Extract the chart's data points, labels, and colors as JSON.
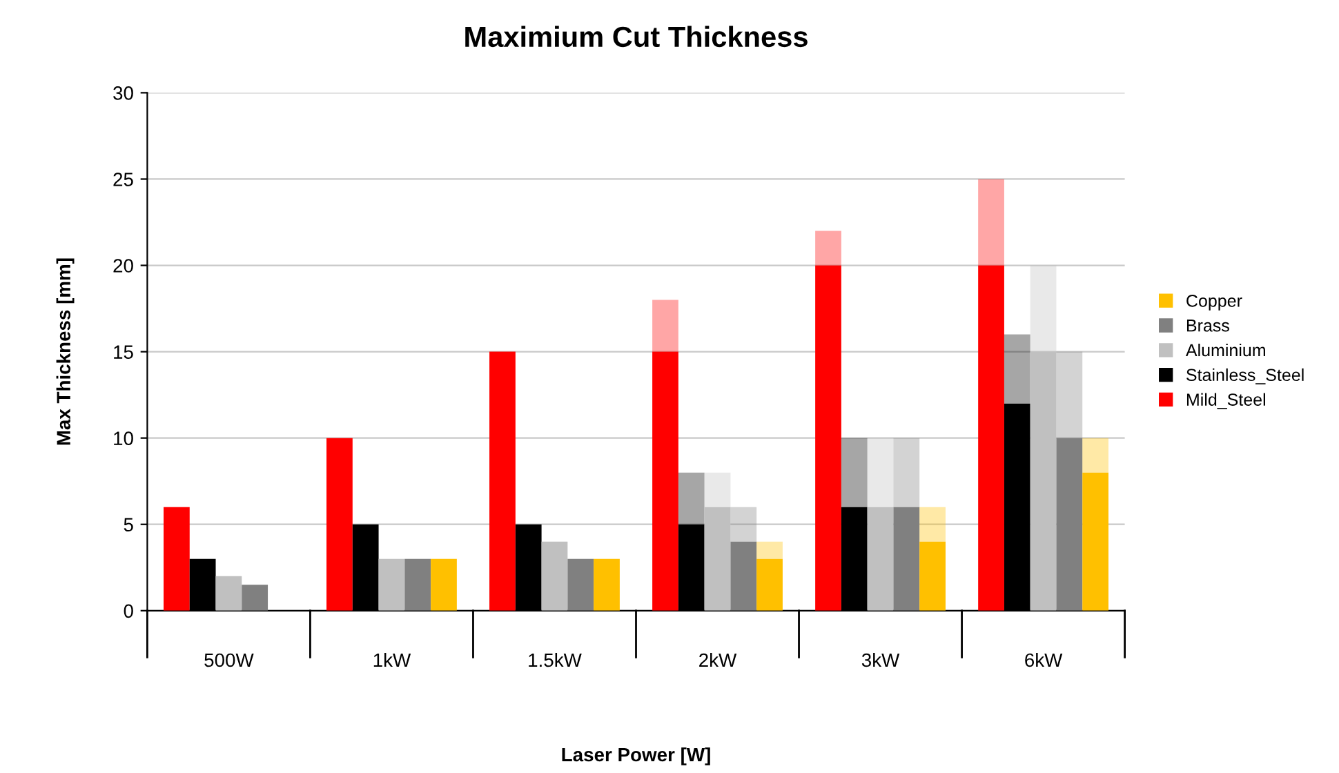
{
  "chart_data": {
    "type": "bar",
    "title": "Maximium Cut Thickness",
    "xlabel": "Laser Power [W]",
    "ylabel": "Max Thickness [mm]",
    "categories": [
      "500W",
      "1kW",
      "1.5kW",
      "2kW",
      "3kW",
      "6kW"
    ],
    "series": [
      {
        "name": "Mild_Steel",
        "color": "#ff0000",
        "values": [
          6,
          10,
          15,
          15,
          20,
          20
        ],
        "errors": [
          null,
          null,
          null,
          [
            15,
            18
          ],
          [
            20,
            22
          ],
          [
            20,
            25
          ]
        ]
      },
      {
        "name": "Stainless_Steel",
        "color": "#000000",
        "values": [
          3,
          5,
          5,
          5,
          6,
          12
        ],
        "errors": [
          null,
          null,
          null,
          [
            5,
            8
          ],
          [
            6,
            10
          ],
          [
            12,
            16
          ]
        ]
      },
      {
        "name": "Aluminium",
        "color": "#c0c0c0",
        "values": [
          2,
          3,
          4,
          6,
          6,
          15
        ],
        "errors": [
          null,
          null,
          null,
          [
            6,
            8
          ],
          [
            6,
            10
          ],
          [
            15,
            20
          ]
        ]
      },
      {
        "name": "Brass",
        "color": "#808080",
        "values": [
          1.5,
          3,
          3,
          4,
          6,
          10
        ],
        "errors": [
          null,
          null,
          null,
          [
            4,
            6
          ],
          [
            6,
            10
          ],
          [
            10,
            15
          ]
        ]
      },
      {
        "name": "Copper",
        "color": "#ffc000",
        "values": [
          null,
          3,
          3,
          3,
          4,
          8
        ],
        "errors": [
          null,
          null,
          null,
          [
            3,
            4
          ],
          [
            4,
            6
          ],
          [
            8,
            10
          ]
        ]
      }
    ],
    "ylim": [
      0,
      30
    ],
    "yticks": [
      0,
      5,
      10,
      15,
      20,
      25,
      30
    ],
    "grid": "y",
    "legend": "right"
  }
}
